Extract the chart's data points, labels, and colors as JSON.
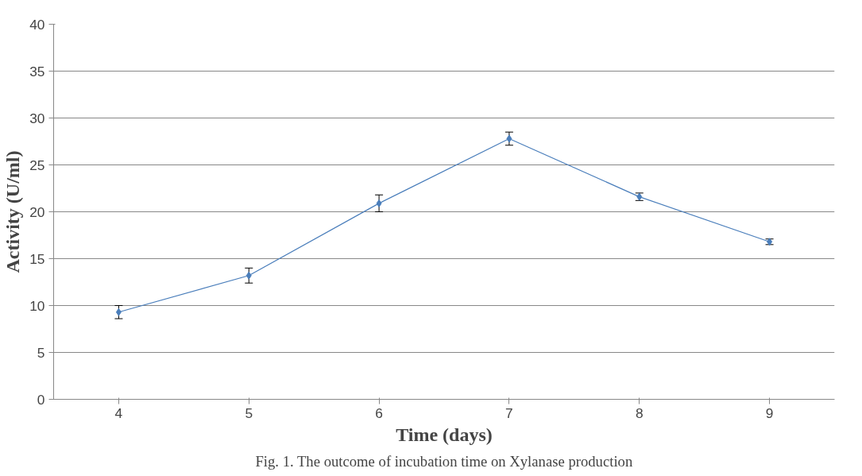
{
  "chart_data": {
    "type": "line",
    "xlabel": "Time (days)",
    "ylabel": "Activity (U/ml)",
    "categories": [
      "4",
      "5",
      "6",
      "7",
      "8",
      "9"
    ],
    "series": [
      {
        "color": "#4a7ebb",
        "values": [
          9.3,
          13.2,
          20.9,
          27.8,
          21.6,
          16.8
        ],
        "errors": [
          0.7,
          0.8,
          0.9,
          0.7,
          0.4,
          0.3
        ]
      }
    ],
    "ylim": [
      0,
      40
    ],
    "yticks": [
      0,
      5,
      10,
      15,
      20,
      25,
      30,
      35,
      40
    ],
    "grid": "y",
    "marker": "diamond",
    "line_style": "solid",
    "annotations": [
      "Fig. 1. The outcome of incubation time on Xylanase production"
    ]
  }
}
